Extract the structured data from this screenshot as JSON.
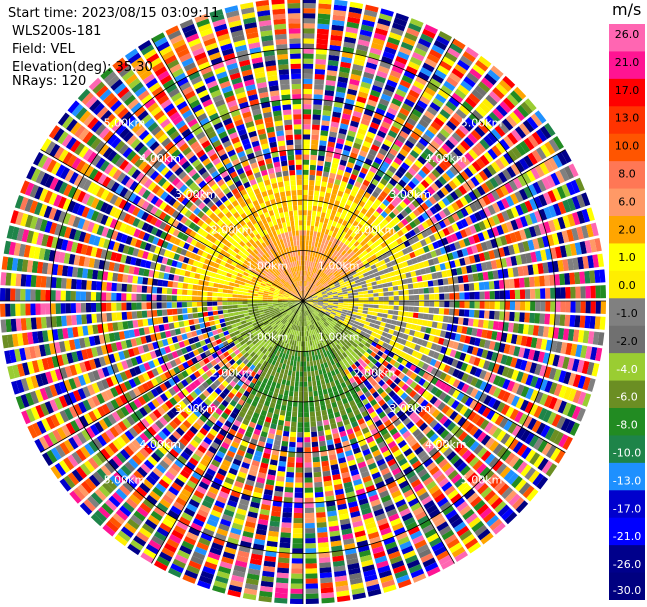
{
  "header": {
    "start_time": "Start time: 2023/08/15 03:09:11",
    "instrument": "WLS200s-181",
    "field": "Field: VEL",
    "elevation": "Elevation(deg): 35.30",
    "nrays": "NRays: 120"
  },
  "chart_data": {
    "type": "heatmap",
    "projection": "polar",
    "field": "VEL",
    "units": "m/s",
    "n_rays": 120,
    "range_rings_km": [
      1.0,
      2.0,
      3.0,
      4.0,
      5.0
    ],
    "range_ring_labels": [
      "1.00km",
      "2.00km",
      "3.00km",
      "4.00km",
      "5.00km"
    ],
    "max_range_km": 6.0,
    "colorbar": {
      "title": "m/s",
      "tick_labels": [
        "26.0",
        "21.0",
        "17.0",
        "13.0",
        "10.0",
        "8.0",
        "6.0",
        "2.0",
        "1.0",
        "0.0",
        "-1.0",
        "-2.0",
        "-4.0",
        "-6.0",
        "-8.0",
        "-10.0",
        "-13.0",
        "-17.0",
        "-21.0",
        "-26.0",
        "-30.0"
      ],
      "levels": [
        30,
        26,
        21,
        17,
        13,
        10,
        8,
        6,
        2,
        1,
        0,
        -1,
        -2,
        -4,
        -6,
        -8,
        -10,
        -13,
        -17,
        -21,
        -26,
        -30
      ],
      "colors": [
        "#ff66b2",
        "#ff1493",
        "#ff0000",
        "#ff3300",
        "#ff5500",
        "#ff7755",
        "#ff9966",
        "#ffa500",
        "#ffff00",
        "#ffee00",
        "#808080",
        "#707070",
        "#9acd32",
        "#6b8e23",
        "#228b22",
        "#1e8449",
        "#1e90ff",
        "#0000cd",
        "#0000ff",
        "#00008b",
        "#000080"
      ]
    },
    "regions": [
      {
        "range_km": [
          0.0,
          2.5
        ],
        "azimuth_deg": [
          -90,
          90
        ],
        "value": 2.0
      },
      {
        "range_km": [
          0.0,
          1.4
        ],
        "azimuth_deg": [
          -60,
          60
        ],
        "value": 6.0
      },
      {
        "range_km": [
          0.0,
          1.6
        ],
        "azimuth_deg": [
          90,
          270
        ],
        "value": -4.0
      },
      {
        "range_km": [
          1.0,
          2.6
        ],
        "azimuth_deg": [
          150,
          210
        ],
        "value": -6.0
      },
      {
        "range_km": [
          0.0,
          3.0
        ],
        "azimuth_deg": [
          60,
          120
        ],
        "value": 0.0
      },
      {
        "range_km": [
          3.0,
          6.0
        ],
        "azimuth_deg": [
          0,
          360
        ],
        "value": "noise"
      }
    ]
  }
}
